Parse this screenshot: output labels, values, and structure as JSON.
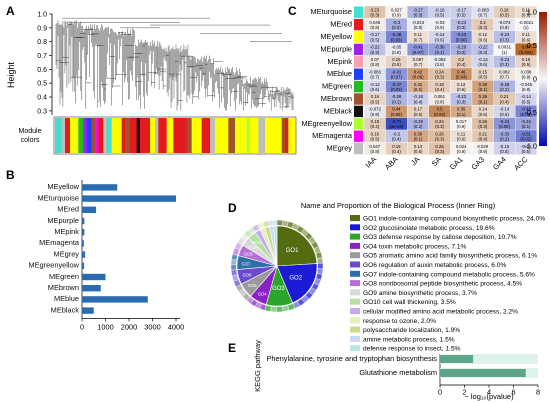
{
  "panel_labels": {
    "a": "A",
    "b": "B",
    "c": "C",
    "d": "D",
    "e": "E"
  },
  "colors": {
    "turquoise": "#40e0d0",
    "red": "#e41a1c",
    "yellow": "#ffff00",
    "purple": "#a020f0",
    "pink": "#ff9fb4",
    "blue": "#1f3fff",
    "green": "#22bb22",
    "brown": "#a0522d",
    "black": "#111111",
    "greenyellow": "#adff2f",
    "magenta": "#ff00ff",
    "grey": "#bebebe",
    "bar": "#2b6cb0",
    "kegg_bar": "#5fa58a"
  },
  "chart_data": [
    {
      "panel": "A",
      "type": "dendrogram",
      "ylabel": "Height",
      "yticks": [
        0.3,
        0.4,
        0.5,
        0.6,
        0.7,
        0.8,
        0.9,
        1.0
      ],
      "ylim": [
        0.27,
        1.0
      ],
      "color_bar_label": [
        "Module",
        "colors"
      ]
    },
    {
      "panel": "B",
      "type": "bar",
      "orientation": "horizontal",
      "categories": [
        "MEyellow",
        "MEturquoise",
        "MEred",
        "MEpurple",
        "MEpink",
        "MEmagenta",
        "MEgrey",
        "MEgreenyellow",
        "MEgreen",
        "MEbrown",
        "MEblue",
        "MEblack"
      ],
      "label_colors": [
        "yellow",
        "turquoise",
        "red",
        "purple",
        "pink",
        "magenta",
        "grey",
        "greenyellow",
        "green",
        "brown",
        "blue",
        "black"
      ],
      "values": [
        1500,
        4000,
        600,
        100,
        100,
        80,
        130,
        90,
        1000,
        800,
        2800,
        500
      ],
      "xticks": [
        0,
        1000,
        2000,
        3000,
        4000
      ],
      "xlim": [
        0,
        4300
      ]
    },
    {
      "panel": "C",
      "type": "heatmap",
      "rows": [
        "MEturquoise",
        "MEred",
        "MEyellow",
        "MEpurple",
        "MEpink",
        "MEblue",
        "MEgreen",
        "MEbrown",
        "MEblack",
        "MEgreenyellow",
        "MEmagenta",
        "MEgrey"
      ],
      "row_colors": [
        "turquoise",
        "red",
        "yellow",
        "purple",
        "pink",
        "blue",
        "green",
        "brown",
        "black",
        "greenyellow",
        "magenta",
        "grey"
      ],
      "columns": [
        "IAA",
        "ABA",
        "JA",
        "SA",
        "GA1",
        "GA3",
        "GA4",
        "ACC"
      ],
      "values": [
        [
          0.23,
          0.027,
          -0.27,
          -0.16,
          -0.17,
          -0.083,
          0.18,
          0.11
        ],
        [
          0.046,
          -0.3,
          -0.043,
          -0.03,
          -0.24,
          0.2,
          -0.072,
          -0.0021
        ],
        [
          -0.17,
          -0.48,
          0.11,
          -0.14,
          -0.43,
          0.12,
          -0.24,
          0.11
        ],
        [
          -0.22,
          -0.05,
          -0.41,
          -0.36,
          -0.29,
          -0.22,
          0.0031,
          0.64
        ],
        [
          0.07,
          0.16,
          0.087,
          -0.052,
          0.2,
          -0.13,
          -0.23,
          0.15
        ],
        [
          -0.083,
          -0.41,
          0.42,
          0.24,
          0.46,
          0.15,
          0.082,
          0.038
        ],
        [
          -0.12,
          -0.47,
          0.32,
          0.19,
          0.12,
          0.38,
          -0.28,
          -0.045
        ],
        [
          0.16,
          -0.28,
          -0.18,
          0.061,
          -0.23,
          0.36,
          0.21,
          -0.14
        ],
        [
          -0.072,
          0.44,
          0.17,
          0.5,
          0.35,
          0.14,
          -0.14,
          -0.48
        ],
        [
          0.19,
          -0.71,
          -0.29,
          0.24,
          0.017,
          0.26,
          -0.41,
          -0.34
        ],
        [
          0.16,
          -0.2,
          0.36,
          0.26,
          0.11,
          0.21,
          -0.33,
          -0.51
        ],
        [
          0.047,
          0.18,
          0.14,
          0.25,
          0.024,
          0.029,
          -0.15,
          -0.15
        ]
      ],
      "pvalues": [
        [
          "(0.3)",
          "(0.9)",
          "(0.3)",
          "(0.5)",
          "(0.5)",
          "(0.7)",
          "(0.5)",
          "(0.6)"
        ],
        [
          "(0.8)",
          "(0.2)",
          "(0.9)",
          "(0.9)",
          "(0.3)",
          "(0.4)",
          "(0.8)",
          "(1)"
        ],
        [
          "(0.5)",
          "(0.03)",
          "(0.7)",
          "(0.6)",
          "(0.06)",
          "(0.6)",
          "(0.3)",
          "(0.6)"
        ],
        [
          "(0.3)",
          "(0.8)",
          "(0.07)",
          "(0.1)",
          "(0.2)",
          "(0.3)",
          "(1)",
          "(0.002)"
        ],
        [
          "(0.8)",
          "(0.5)",
          "(0.7)",
          "(0.8)",
          "(0.4)",
          "(0.6)",
          "(0.3)",
          "(0.5)"
        ],
        [
          "(0.7)",
          "(0.07)",
          "(0.06)",
          "(0.3)",
          "(0.04)",
          "(0.5)",
          "(0.7)",
          "(0.9)"
        ],
        [
          "(0.6)",
          "(0.03)",
          "(0.2)",
          "(0.4)",
          "(0.6)",
          "(0.1)",
          "(0.2)",
          "(0.8)"
        ],
        [
          "(0.5)",
          "(0.2)",
          "(0.4)",
          "(0.8)",
          "(0.3)",
          "(0.1)",
          "(0.4)",
          "(0.5)"
        ],
        [
          "(0.8)",
          "(0.05)",
          "(0.5)",
          "(0.02)",
          "(0.1)",
          "(0.6)",
          "(0.6)",
          "(0.03)"
        ],
        [
          "(0.4)",
          "(4e-04)",
          "(0.2)",
          "(0.3)",
          "(0.9)",
          "(0.3)",
          "(0.08)",
          "(0.1)"
        ],
        [
          "(0.5)",
          "(0.4)",
          "(0.1)",
          "(0.3)",
          "(0.6)",
          "(0.4)",
          "(0.2)",
          "(0.02)"
        ],
        [
          "(0.8)",
          "(0.4)",
          "(0.6)",
          "(0.3)",
          "(0.9)",
          "(0.9)",
          "(0.5)",
          "(0.5)"
        ]
      ],
      "colorbar_ticks": [
        "1.0",
        "0.5",
        "0",
        "-0.5",
        "-1.0"
      ],
      "colorbar_range": [
        -1,
        1
      ]
    },
    {
      "panel": "D",
      "type": "pie",
      "title": "Name and Proportion of the Biological Process (Inner Ring)",
      "slices": [
        {
          "label": "GO1 indole-containing compound biosynthetic process, 24.0%",
          "value": 24.0,
          "color": "#556b10"
        },
        {
          "label": "GO2 glucosinolate metabolic process, 19.6%",
          "value": 19.6,
          "color": "#1c1cd6"
        },
        {
          "label": "GO3 defense response by callose deposition, 10.7%",
          "value": 10.7,
          "color": "#2ba62b"
        },
        {
          "label": "GO4 toxin metabolic process, 7.1%",
          "value": 7.1,
          "color": "#8b22c8"
        },
        {
          "label": "GO5 aromatic amino acid family biosynthetic process, 6.1%",
          "value": 6.1,
          "color": "#9a9a9a"
        },
        {
          "label": "GO6 regulation of auxin metabolic process, 6.0%",
          "value": 6.0,
          "color": "#6a4bd0"
        },
        {
          "label": "GO7 indole-containing compound metabolic process, 5.6%",
          "value": 5.6,
          "color": "#2f6fa8"
        },
        {
          "label": "GO8 nonribosomal peptide biosynthetic process, 4.5%",
          "value": 4.5,
          "color": "#b76fd8"
        },
        {
          "label": "GO9 amine biosynthetic process, 3.7%",
          "value": 3.7,
          "color": "#d8d8d8"
        },
        {
          "label": "GO10 cell wall thickening, 3.5%",
          "value": 3.5,
          "color": "#b6e0a0"
        },
        {
          "label": "cellular modified amino acid metabolic process, 2.2%",
          "value": 2.2,
          "color": "#c7a8f0"
        },
        {
          "label": "response to ozone, 2.0%",
          "value": 2.0,
          "color": "#e3f3b8"
        },
        {
          "label": "polysaccharide localization, 1.9%",
          "value": 1.9,
          "color": "#cfd890"
        },
        {
          "label": "amine metabolic process, 1.5%",
          "value": 1.5,
          "color": "#c9d7f8"
        },
        {
          "label": "defense response to insect, 1.5%",
          "value": 1.5,
          "color": "#b7e6e8"
        }
      ],
      "slice_labels": [
        "GO1",
        "GO2",
        "GO3",
        "GO4",
        "GO5",
        "GO6",
        "GO7",
        "GO8",
        "GO9",
        "GO10"
      ]
    },
    {
      "panel": "E",
      "type": "bar",
      "orientation": "horizontal",
      "categories": [
        "Phenylalanine, tyrosine and tryptophan biosynthesis",
        "Glutathione metabolism"
      ],
      "values": [
        2.7,
        7.0
      ],
      "xticks": [
        0,
        2,
        4,
        6,
        8
      ],
      "xlim": [
        0,
        8
      ],
      "ylabel": "KEGG pathway",
      "xlabel": "− log₁₀(pvalue)"
    }
  ]
}
